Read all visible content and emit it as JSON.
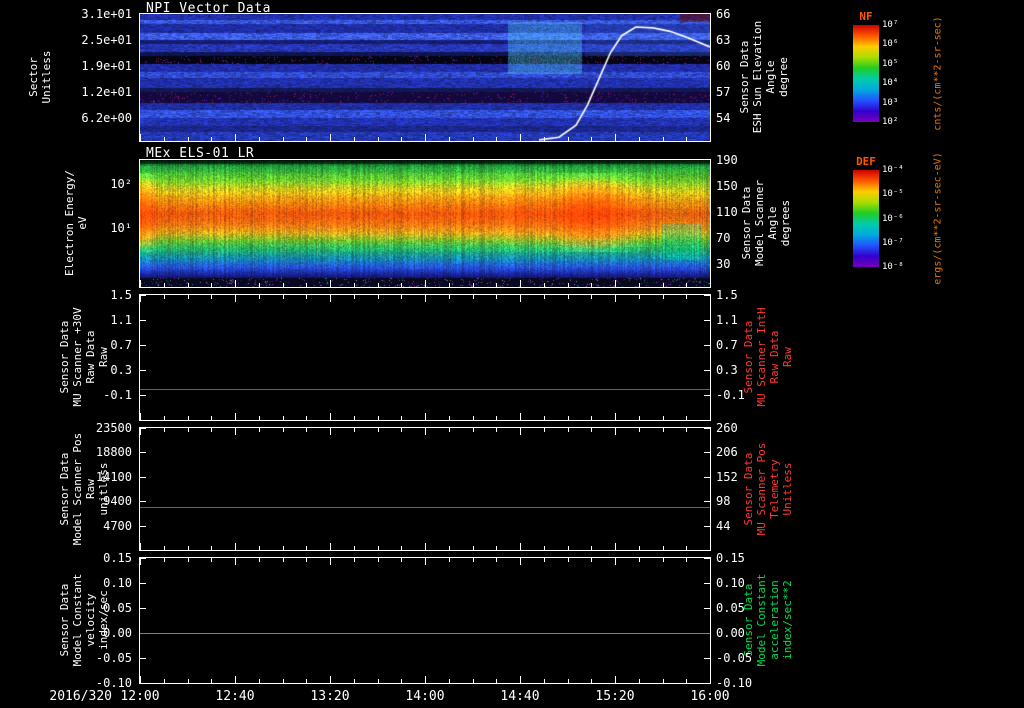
{
  "figure": {
    "bg": "#000000",
    "fg": "#ffffff"
  },
  "x_axis": {
    "date": "2016/320",
    "tick_labels": [
      "12:00",
      "12:40",
      "13:20",
      "14:00",
      "14:40",
      "15:20",
      "16:00"
    ]
  },
  "chart_data": [
    {
      "type": "heatmap",
      "title": "NPI Vector Data",
      "ylabel_left": "Sector\nUnitless",
      "yticks_left": {
        "labels": [
          "3.1e+01",
          "2.5e+01",
          "1.9e+01",
          "1.2e+01",
          "6.2e+00"
        ],
        "fracs": [
          0,
          0.205,
          0.41,
          0.615,
          0.82
        ]
      },
      "ylabel_right": "Sensor Data\nESH Sun Elevation\nAngle\ndegree",
      "yticks_right": {
        "labels": [
          "66",
          "63",
          "60",
          "57",
          "54"
        ],
        "fracs": [
          0,
          0.205,
          0.41,
          0.615,
          0.82
        ]
      },
      "colorbar": {
        "name": "NF",
        "unit": "cnts/(cm**2-sr-sec)",
        "label_color": "#ff5500",
        "unit_color": "#ee7700",
        "tick_labels": [
          "10⁷",
          "10⁶",
          "10⁵",
          "10⁴",
          "10³",
          "10²"
        ],
        "colors": [
          "#cc0000",
          "#ff5500",
          "#ffcc00",
          "#aadd00",
          "#22cc22",
          "#00ccaa",
          "#00aadd",
          "#2255ff",
          "#3300cc",
          "#7700bb"
        ]
      },
      "tick_span": 0.82,
      "overlay_line": {
        "name": "sun-elevation-angle",
        "color": "#ffffff",
        "axis": "right",
        "v_top": 66,
        "v_bottom": 54,
        "t": [
          0.7,
          0.735,
          0.765,
          0.785,
          0.805,
          0.825,
          0.845,
          0.87,
          0.9,
          0.93,
          0.96,
          1.0
        ],
        "v": [
          51.5,
          51.8,
          53.2,
          55.5,
          58.5,
          61.5,
          63.5,
          64.5,
          64.4,
          64.0,
          63.3,
          62.2
        ]
      },
      "rows": [
        {
          "h": 0.047,
          "c": "#2638c8",
          "s": 0.5
        },
        {
          "h": 0.031,
          "c": "#3a58e8",
          "s": 0.7
        },
        {
          "h": 0.071,
          "c": "#2334be",
          "s": 0.5
        },
        {
          "h": 0.055,
          "c": "#3c5cf0",
          "s": 0.75
        },
        {
          "h": 0.031,
          "c": "#1a2590",
          "s": 0.4
        },
        {
          "h": 0.063,
          "c": "#2c3ed0",
          "s": 0.55
        },
        {
          "h": 0.031,
          "c": "#131c70",
          "s": 0.3
        },
        {
          "h": 0.063,
          "c": "#07071e",
          "s": 0.12,
          "dark": true
        },
        {
          "h": 0.063,
          "c": "#2635c4",
          "s": 0.5
        },
        {
          "h": 0.047,
          "c": "#3450e0",
          "s": 0.65
        },
        {
          "h": 0.079,
          "c": "#2638c8",
          "s": 0.5
        },
        {
          "h": 0.031,
          "c": "#18206e",
          "s": 0.35
        },
        {
          "h": 0.087,
          "c": "#1c0c58",
          "s": 0.25,
          "dark": true
        },
        {
          "h": 0.055,
          "c": "#2636c0",
          "s": 0.5
        },
        {
          "h": 0.063,
          "c": "#3353e6",
          "s": 0.7
        },
        {
          "h": 0.063,
          "c": "#2638c8",
          "s": 0.55
        },
        {
          "h": 0.047,
          "c": "#202ea8",
          "s": 0.45
        },
        {
          "h": 0.073,
          "c": "#2840cc",
          "s": 0.55
        }
      ],
      "features": [
        {
          "name": "cyan-patch",
          "x0": 0.645,
          "x1": 0.775,
          "y0": 0.06,
          "y1": 0.47,
          "color": "#55d4ff",
          "strength": 0.5
        },
        {
          "name": "right-glow",
          "x0": 0.78,
          "x1": 1.0,
          "y0": 0.05,
          "y1": 0.33,
          "color": "#4688ff",
          "strength": 0.22
        },
        {
          "name": "maroon-patch",
          "x0": 0.947,
          "x1": 1.0,
          "y0": 0.0,
          "y1": 0.062,
          "color": "#600808",
          "strength": 0.85
        }
      ]
    },
    {
      "type": "heatmap",
      "title": "MEx ELS-01 LR",
      "ylabel_left": "Electron Energy/\neV",
      "yticks_left": {
        "labels": [
          "10²",
          "10¹"
        ],
        "fracs": [
          0.19,
          0.535
        ]
      },
      "ylabel_right": "Sensor Data\nModel Scanner\nAngle\ndegrees",
      "yticks_right": {
        "labels": [
          "190",
          "150",
          "110",
          "70",
          "30"
        ],
        "fracs": [
          0,
          0.205,
          0.41,
          0.615,
          0.82
        ]
      },
      "colorbar": {
        "name": "DEF",
        "unit": "ergs/(cm**2-sr-sec-eV)",
        "label_color": "#ff5500",
        "unit_color": "#ee7700",
        "tick_labels": [
          "10⁻⁴",
          "10⁻⁵",
          "10⁻⁶",
          "10⁻⁷",
          "10⁻⁸"
        ],
        "colors": [
          "#cc0000",
          "#ff5500",
          "#ffcc00",
          "#aadd00",
          "#22cc22",
          "#00ccaa",
          "#00aadd",
          "#2255ff",
          "#3300cc",
          "#7700bb"
        ]
      },
      "core_center": 0.42,
      "core_intensity": [
        0.98,
        0.9,
        0.62,
        0.66,
        0.6,
        0.63,
        0.58,
        0.62,
        0.66,
        0.6,
        0.57,
        0.62,
        0.65,
        0.6,
        0.63,
        0.67,
        0.62,
        0.6,
        0.65,
        0.68,
        0.63,
        0.6,
        0.64,
        0.68,
        0.64,
        0.62,
        0.66,
        0.7,
        0.67,
        0.64,
        0.68,
        0.72,
        0.68,
        0.72,
        0.66,
        0.75,
        0.8,
        0.72,
        0.82,
        0.76,
        0.9,
        0.96,
        1.0,
        1.0,
        0.97,
        0.9,
        0.8,
        0.7,
        0.62,
        0.55,
        0.48,
        0.44,
        0.5,
        0.54,
        0.42
      ],
      "profile": [
        {
          "y": 0.0,
          "c": "#082e10"
        },
        {
          "y": 0.05,
          "c": "#1e9e3c"
        },
        {
          "y": 0.15,
          "c": "#66c22a"
        },
        {
          "y": 0.25,
          "c": "#d8d81e"
        },
        {
          "y": 0.33,
          "c": "#f0a612"
        },
        {
          "y": 0.42,
          "c": "#ee6410"
        },
        {
          "y": 0.5,
          "c": "#ee8816"
        },
        {
          "y": 0.57,
          "c": "#c8c020"
        },
        {
          "y": 0.63,
          "c": "#58c030"
        },
        {
          "y": 0.7,
          "c": "#22a862"
        },
        {
          "y": 0.77,
          "c": "#1488a8"
        },
        {
          "y": 0.84,
          "c": "#2550d8"
        },
        {
          "y": 0.9,
          "c": "#182090"
        },
        {
          "y": 0.95,
          "c": "#0a0a34"
        },
        {
          "y": 1.0,
          "c": "#05051a"
        }
      ]
    },
    {
      "type": "line",
      "ylabel_left": "Sensor Data\nMU Scanner +30V\nRaw Data\nRaw",
      "yticks_left": {
        "labels": [
          "1.5",
          "1.1",
          "0.7",
          "0.3",
          "-0.1"
        ],
        "fracs": [
          0,
          0.2,
          0.4,
          0.6,
          0.8
        ]
      },
      "ylabel_right": "Sensor Data\nMU Scanner IntH\nRaw Data\nRaw",
      "ylabel_right_color": "#ff3838",
      "yticks_right": {
        "labels": [
          "1.5",
          "1.1",
          "0.7",
          "0.3",
          "-0.1"
        ],
        "fracs": [
          0,
          0.2,
          0.4,
          0.6,
          0.8
        ]
      },
      "y_range": [
        -0.5,
        1.5
      ],
      "series": [
        {
          "name": "mu-scanner-30v-raw",
          "value": 0.0,
          "color": "#ff2222"
        }
      ]
    },
    {
      "type": "line",
      "ylabel_left": "Sensor Data\nModel Scanner Pos\nRaw\nunitless",
      "yticks_left": {
        "labels": [
          "23500",
          "18800",
          "14100",
          "9400",
          "4700"
        ],
        "fracs": [
          0,
          0.2,
          0.4,
          0.6,
          0.8
        ]
      },
      "ylabel_right": "Sensor Data\nMU Scanner Pos\nTelemetry\nUnitless",
      "ylabel_right_color": "#ff3838",
      "yticks_right": {
        "labels": [
          "260",
          "206",
          "152",
          "98",
          "44"
        ],
        "fracs": [
          0,
          0.2,
          0.4,
          0.6,
          0.8
        ]
      },
      "y_range": [
        0,
        23500
      ],
      "series": [
        {
          "name": "model-scanner-pos-raw",
          "value": 8300,
          "color": "#ff2222"
        }
      ]
    },
    {
      "type": "line",
      "ylabel_left": "Sensor Data\nModel Constant\nvelocity\nindex/sec",
      "yticks_left": {
        "labels": [
          "0.15",
          "0.10",
          "0.05",
          "0.00",
          "-0.05",
          "-0.10"
        ],
        "fracs": [
          0,
          0.2,
          0.4,
          0.6,
          0.8,
          1.0
        ]
      },
      "ylabel_right": "Sensor Data\nModel Constant\nacceleration\nindex/sec**2",
      "ylabel_right_color": "#00dd55",
      "yticks_right": {
        "labels": [
          "0.15",
          "0.10",
          "0.05",
          "0.00",
          "-0.05",
          "-0.10"
        ],
        "fracs": [
          0,
          0.2,
          0.4,
          0.6,
          0.8,
          1.0
        ]
      },
      "y_range": [
        -0.1,
        0.15
      ],
      "series": [
        {
          "name": "model-constant-velocity",
          "value": 0.0,
          "color": "#00cc44"
        }
      ]
    }
  ]
}
